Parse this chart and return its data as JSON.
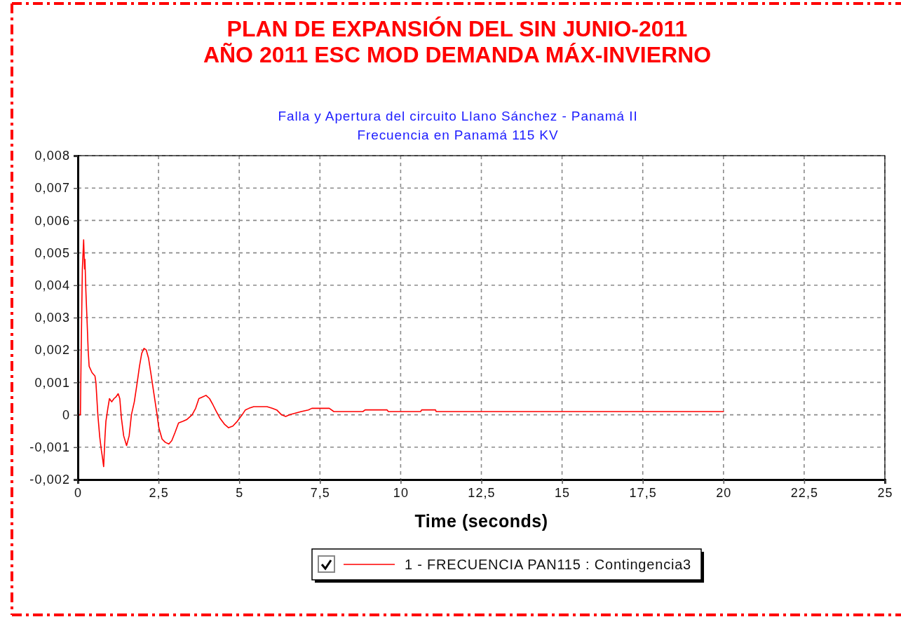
{
  "chart_data": {
    "type": "line",
    "title": "PLAN DE EXPANSIÓN DEL SIN JUNIO-2011\nAÑO 2011 ESC MOD DEMANDA MÁX-INVIERNO",
    "subtitle": "Falla y Apertura del circuito Llano Sánchez - Panamá II\nFrecuencia en Panamá 115 KV",
    "xlabel": "Time (seconds)",
    "xlim": [
      0,
      25
    ],
    "xticks": [
      0,
      {
        "value": 2.5,
        "label": "2,5"
      },
      5,
      {
        "value": 7.5,
        "label": "7,5"
      },
      10,
      {
        "value": 12.5,
        "label": "12,5"
      },
      15,
      {
        "value": 17.5,
        "label": "17,5"
      },
      20,
      {
        "value": 22.5,
        "label": "22,5"
      },
      25
    ],
    "ylim": [
      -0.002,
      0.008
    ],
    "yticks": [
      {
        "value": -0.002,
        "label": "-0,002"
      },
      {
        "value": -0.001,
        "label": "-0,001"
      },
      0,
      {
        "value": 0.001,
        "label": "0,001"
      },
      {
        "value": 0.002,
        "label": "0,002"
      },
      {
        "value": 0.003,
        "label": "0,003"
      },
      {
        "value": 0.004,
        "label": "0,004"
      },
      {
        "value": 0.005,
        "label": "0,005"
      },
      {
        "value": 0.006,
        "label": "0,006"
      },
      {
        "value": 0.007,
        "label": "0,007"
      },
      {
        "value": 0.008,
        "label": "0,008"
      }
    ],
    "grid": true,
    "legend": "bottom",
    "series": [
      {
        "name": "1 - FRECUENCIA PAN115 : Contingencia3",
        "color": "#ff0000",
        "x": [
          0,
          0.08,
          0.1,
          0.14,
          0.18,
          0.21,
          0.22,
          0.25,
          0.29,
          0.32,
          0.35,
          0.44,
          0.53,
          0.56,
          0.62,
          0.68,
          0.73,
          0.76,
          0.8,
          0.84,
          0.87,
          0.93,
          0.98,
          1.05,
          1.12,
          1.18,
          1.25,
          1.3,
          1.35,
          1.42,
          1.51,
          1.59,
          1.66,
          1.75,
          1.84,
          1.91,
          1.98,
          2.05,
          2.12,
          2.19,
          2.26,
          2.35,
          2.44,
          2.51,
          2.61,
          2.71,
          2.82,
          2.91,
          3.01,
          3.12,
          3.26,
          3.37,
          3.54,
          3.65,
          3.75,
          3.86,
          3.97,
          4.08,
          4.19,
          4.29,
          4.4,
          4.55,
          4.67,
          4.8,
          4.94,
          5.09,
          5.19,
          5.3,
          5.45,
          5.66,
          5.86,
          6.02,
          6.16,
          6.31,
          6.44,
          6.56,
          6.74,
          6.92,
          7.14,
          7.25,
          7.79,
          7.93,
          8.83,
          8.9,
          9.58,
          9.62,
          10.62,
          10.65,
          11.08,
          11.1,
          20
        ],
        "values": [
          0,
          0,
          0.0017,
          0.0045,
          0.0054,
          0.0045,
          0.0048,
          0.0038,
          0.0028,
          0.002,
          0.0015,
          0.0013,
          0.0012,
          0.001,
          0,
          -0.0007,
          -0.0011,
          -0.0013,
          -0.0016,
          -0.0007,
          -0.0002,
          0.0002,
          0.0005,
          0.0004,
          0.0005,
          0.00055,
          0.00065,
          0.0005,
          -0.0001,
          -0.00065,
          -0.00095,
          -0.00065,
          0,
          0.0004,
          0.001,
          0.0015,
          0.0019,
          0.00205,
          0.002,
          0.00175,
          0.0013,
          0.0007,
          0.0001,
          -0.0004,
          -0.00075,
          -0.00085,
          -0.0009,
          -0.0008,
          -0.00055,
          -0.00025,
          -0.0002,
          -0.00015,
          0,
          0.0002,
          0.0005,
          0.00055,
          0.0006,
          0.0005,
          0.0003,
          0.0001,
          -0.0001,
          -0.0003,
          -0.0004,
          -0.00035,
          -0.0002,
          0,
          0.00015,
          0.0002,
          0.00025,
          0.00025,
          0.00025,
          0.0002,
          0.00015,
          0,
          -5e-05,
          0,
          5e-05,
          0.0001,
          0.00015,
          0.0002,
          0.0002,
          0.0001,
          0.0001,
          0.00015,
          0.00015,
          0.0001,
          0.0001,
          0.00015,
          0.00015,
          0.0001,
          0.0001
        ]
      }
    ]
  }
}
